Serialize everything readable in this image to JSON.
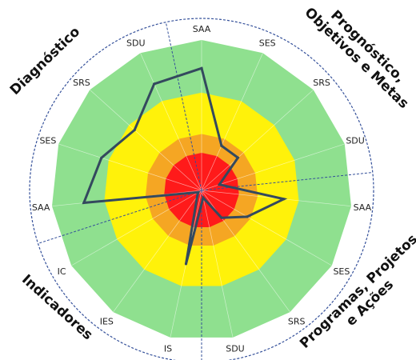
{
  "chart_data": {
    "type": "radar",
    "axes": [
      "SAA",
      "SES",
      "SRS",
      "SDU",
      "SAA",
      "SES",
      "SRS",
      "SDU",
      "IS",
      "IES",
      "IC",
      "SAA",
      "SES",
      "SRS",
      "SDU"
    ],
    "values": [
      3.25,
      1.3,
      1.3,
      0.5,
      2.2,
      1.4,
      0.9,
      0.2,
      2.0,
      0.2,
      0.1,
      3.15,
      2.8,
      2.4,
      3.1
    ],
    "rmax": 4,
    "bands": [
      {
        "from": 0,
        "to": 1,
        "color": "#ff1a1a"
      },
      {
        "from": 1,
        "to": 1.5,
        "color": "#f5a623"
      },
      {
        "from": 1.5,
        "to": 2.6,
        "color": "#fff20a"
      },
      {
        "from": 2.6,
        "to": 4,
        "color": "#8fe08f"
      }
    ],
    "line_color": "#34495e",
    "groups": [
      {
        "name": "Diagnóstico",
        "lines": [
          "Diagnóstico"
        ]
      },
      {
        "name": "Prognóstico, Objetivos e Metas",
        "lines": [
          "Prognóstico,",
          "Objetivos e Metas"
        ]
      },
      {
        "name": "Programas, Projetos e Ações",
        "lines": [
          "Programas, Projetos",
          "e Ações"
        ]
      },
      {
        "name": "Indicadores",
        "lines": [
          "Indicadores"
        ]
      }
    ]
  }
}
